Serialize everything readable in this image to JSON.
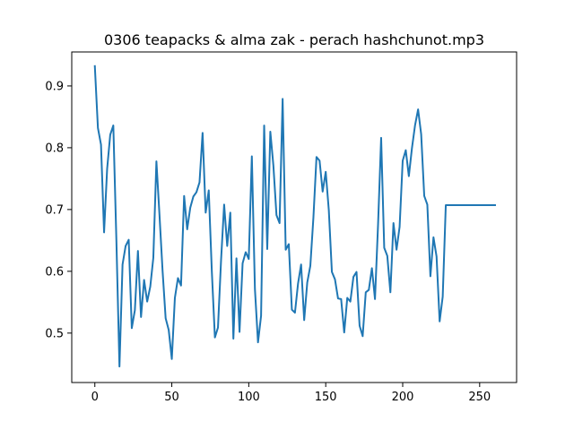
{
  "chart_data": {
    "type": "line",
    "title": "0306 teapacks & alma zak - perach hashchunot.mp3",
    "xlabel": "",
    "ylabel": "",
    "xlim": [
      -15,
      274
    ],
    "ylim": [
      0.42,
      0.955
    ],
    "xticks": [
      0,
      50,
      100,
      150,
      200,
      250
    ],
    "yticks": [
      0.5,
      0.6,
      0.7,
      0.8,
      0.9
    ],
    "grid": false,
    "line_color": "#1f77b4",
    "series": [
      {
        "x": [
          0,
          2,
          4,
          6,
          8,
          10,
          12,
          14,
          16,
          18,
          20,
          22,
          24,
          26,
          28,
          30,
          32,
          34,
          36,
          38,
          40,
          42,
          44,
          46,
          48,
          50,
          52,
          54,
          56,
          58,
          60,
          62,
          64,
          66,
          68,
          70,
          72,
          74,
          76,
          78,
          80,
          82,
          84,
          86,
          88,
          90,
          92,
          94,
          96,
          98,
          100,
          102,
          104,
          106,
          108,
          110,
          112,
          114,
          116,
          118,
          120,
          122,
          124,
          126,
          128,
          130,
          132,
          134,
          136,
          138,
          140,
          142,
          144,
          146,
          148,
          150,
          152,
          154,
          156,
          158,
          160,
          162,
          164,
          166,
          168,
          170,
          172,
          174,
          176,
          178,
          180,
          182,
          184,
          186,
          188,
          190,
          192,
          194,
          196,
          198,
          200,
          202,
          204,
          206,
          208,
          210,
          212,
          214,
          216,
          218,
          220,
          222,
          224,
          226,
          228,
          230,
          232,
          234,
          236,
          238,
          240,
          242,
          244,
          246,
          248,
          250,
          252,
          254,
          256,
          258,
          260
        ],
        "values": [
          0.932,
          0.832,
          0.805,
          0.663,
          0.766,
          0.821,
          0.836,
          0.65,
          0.446,
          0.611,
          0.641,
          0.651,
          0.508,
          0.537,
          0.633,
          0.526,
          0.586,
          0.551,
          0.575,
          0.622,
          0.778,
          0.691,
          0.601,
          0.524,
          0.505,
          0.458,
          0.557,
          0.589,
          0.577,
          0.722,
          0.668,
          0.703,
          0.721,
          0.728,
          0.744,
          0.824,
          0.695,
          0.731,
          0.6,
          0.493,
          0.509,
          0.618,
          0.708,
          0.641,
          0.695,
          0.491,
          0.621,
          0.502,
          0.613,
          0.631,
          0.62,
          0.786,
          0.571,
          0.485,
          0.528,
          0.836,
          0.636,
          0.826,
          0.771,
          0.691,
          0.678,
          0.879,
          0.635,
          0.644,
          0.538,
          0.533,
          0.58,
          0.611,
          0.521,
          0.582,
          0.609,
          0.687,
          0.785,
          0.779,
          0.729,
          0.761,
          0.699,
          0.599,
          0.587,
          0.556,
          0.555,
          0.501,
          0.557,
          0.551,
          0.591,
          0.599,
          0.512,
          0.495,
          0.566,
          0.57,
          0.605,
          0.555,
          0.676,
          0.816,
          0.638,
          0.625,
          0.566,
          0.678,
          0.635,
          0.672,
          0.779,
          0.796,
          0.754,
          0.799,
          0.836,
          0.862,
          0.822,
          0.722,
          0.708,
          0.592,
          0.655,
          0.624,
          0.519,
          0.559,
          0.707,
          0.707,
          0.707,
          0.707,
          0.707,
          0.707,
          0.707,
          0.707,
          0.707,
          0.707,
          0.707,
          0.707,
          0.707,
          0.707,
          0.707,
          0.707,
          0.707
        ]
      }
    ]
  }
}
